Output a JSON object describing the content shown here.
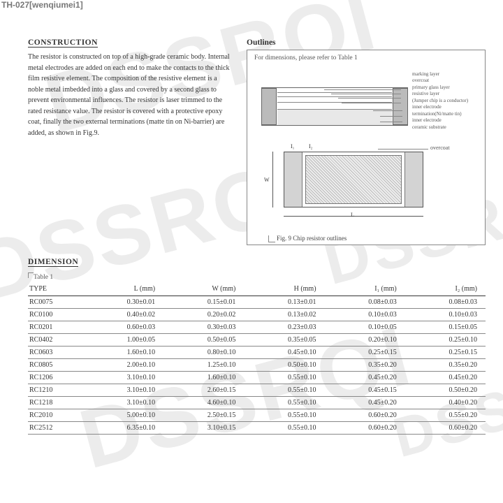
{
  "badge": "TH-027[wenqiumei1]",
  "watermark_text": "DSSRQI",
  "construction": {
    "heading": "CONSTRUCTION",
    "body": "The resistor is constructed on top of a high-grade ceramic body. Internal metal electrodes are added on each end to make the contacts to the thick film resistive element. The composition of the resistive element is a noble metal imbedded into a glass and covered by a second glass to prevent environmental influences. The resistor is laser trimmed to the rated resistance value. The resistor is covered with a protective epoxy coat, finally the two external terminations (matte tin on Ni-barrier) are added, as shown in Fig.9."
  },
  "outlines": {
    "heading": "Outlines",
    "caption": "For dimensions, please refer to Table 1",
    "layers": [
      "marking layer",
      "overcoat",
      "primary glass layer",
      "resistive layer",
      "(Jumper chip is a conductor)",
      "inner electrode",
      "termination(Ni/matte tin)",
      "inner electrode",
      "ceramic substrate"
    ],
    "overcoat_label": "overcoat",
    "dim_L": "L",
    "dim_W": "W",
    "dim_I1": "I₁",
    "dim_I2": "I₂",
    "fig_caption": "Fig. 9   Chip resistor outlines"
  },
  "dimension": {
    "heading": "DIMENSION",
    "table_label": "Table 1",
    "columns": [
      "TYPE",
      "L (mm)",
      "W (mm)",
      "H (mm)",
      "I₁ (mm)",
      "I₂ (mm)"
    ],
    "rows": [
      [
        "RC0075",
        "0.30±0.01",
        "0.15±0.01",
        "0.13±0.01",
        "0.08±0.03",
        "0.08±0.03"
      ],
      [
        "RC0100",
        "0.40±0.02",
        "0.20±0.02",
        "0.13±0.02",
        "0.10±0.03",
        "0.10±0.03"
      ],
      [
        "RC0201",
        "0.60±0.03",
        "0.30±0.03",
        "0.23±0.03",
        "0.10±0.05",
        "0.15±0.05"
      ],
      [
        "RC0402",
        "1.00±0.05",
        "0.50±0.05",
        "0.35±0.05",
        "0.20±0.10",
        "0.25±0.10"
      ],
      [
        "RC0603",
        "1.60±0.10",
        "0.80±0.10",
        "0.45±0.10",
        "0.25±0.15",
        "0.25±0.15"
      ],
      [
        "RC0805",
        "2.00±0.10",
        "1.25±0.10",
        "0.50±0.10",
        "0.35±0.20",
        "0.35±0.20"
      ],
      [
        "RC1206",
        "3.10±0.10",
        "1.60±0.10",
        "0.55±0.10",
        "0.45±0.20",
        "0.45±0.20"
      ],
      [
        "RC1210",
        "3.10±0.10",
        "2.60±0.15",
        "0.55±0.10",
        "0.45±0.15",
        "0.50±0.20"
      ],
      [
        "RC1218",
        "3.10±0.10",
        "4.60±0.10",
        "0.55±0.10",
        "0.45±0.20",
        "0.40±0.20"
      ],
      [
        "RC2010",
        "5.00±0.10",
        "2.50±0.15",
        "0.55±0.10",
        "0.60±0.20",
        "0.55±0.20"
      ],
      [
        "RC2512",
        "6.35±0.10",
        "3.10±0.15",
        "0.55±0.10",
        "0.60±0.20",
        "0.60±0.20"
      ]
    ]
  }
}
